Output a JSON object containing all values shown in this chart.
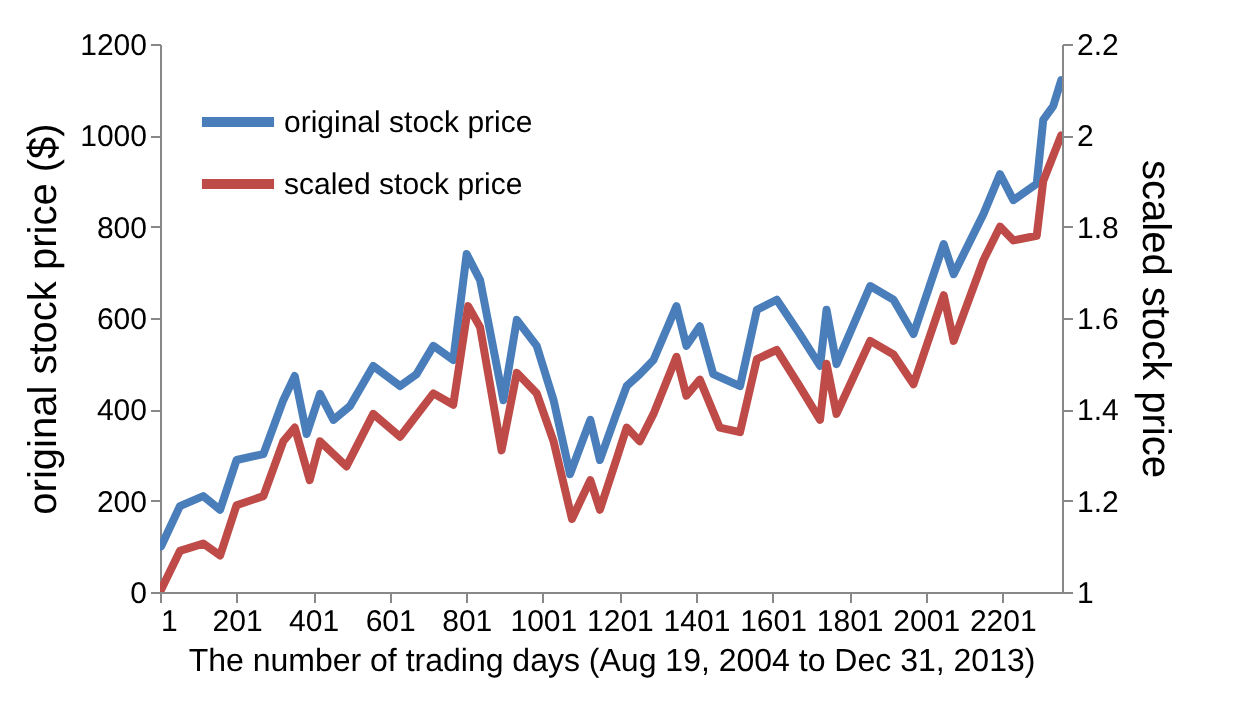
{
  "chart_data": {
    "type": "line",
    "xlabel": "The number of trading days (Aug 19, 2004 to Dec 31, 2013)",
    "ylabel": "original stock price ($)",
    "y2label": "scaled stock price",
    "xlim": [
      1,
      2357
    ],
    "xticks": [
      1,
      201,
      401,
      601,
      801,
      1001,
      1201,
      1401,
      1601,
      1801,
      2001,
      2201
    ],
    "ylim": [
      0,
      1200
    ],
    "yticks": [
      0,
      200,
      400,
      600,
      800,
      1000,
      1200
    ],
    "y2lim": [
      1,
      2.2
    ],
    "y2ticks": [
      1,
      1.2,
      1.4,
      1.6,
      1.8,
      2,
      2.2
    ],
    "legend": "top left",
    "grid": false,
    "marker": "none",
    "line_style": "solid",
    "series": [
      {
        "name": "original stock price",
        "color": "#4a7ebb",
        "x": [
          4,
          53,
          114,
          158,
          201,
          271,
          323,
          353,
          384,
          419,
          454,
          497,
          558,
          628,
          671,
          715,
          767,
          802,
          837,
          898,
          933,
          985,
          1029,
          1072,
          1125,
          1150,
          1193,
          1220,
          1254,
          1290,
          1350,
          1376,
          1411,
          1446,
          1516,
          1560,
          1612,
          1672,
          1725,
          1742,
          1768,
          1856,
          1917,
          1969,
          2048,
          2074,
          2152,
          2195,
          2230,
          2291,
          2308,
          2334,
          2355
        ],
        "values": [
          100,
          188,
          210,
          180,
          289,
          302,
          420,
          473,
          346,
          434,
          377,
          407,
          495,
          451,
          477,
          539,
          508,
          740,
          683,
          420,
          596,
          539,
          420,
          258,
          377,
          289,
          390,
          451,
          477,
          508,
          626,
          539,
          582,
          477,
          451,
          618,
          640,
          565,
          495,
          618,
          499,
          670,
          640,
          565,
          762,
          696,
          828,
          915,
          858,
          894,
          1034,
          1064,
          1121
        ]
      },
      {
        "name": "scaled stock price",
        "color": "#be4b48",
        "axis": "y2",
        "x": [
          1,
          53,
          114,
          158,
          201,
          271,
          323,
          353,
          392,
          419,
          488,
          558,
          628,
          715,
          767,
          806,
          837,
          893,
          933,
          985,
          1029,
          1077,
          1125,
          1150,
          1193,
          1220,
          1254,
          1290,
          1350,
          1376,
          1411,
          1463,
          1516,
          1560,
          1612,
          1672,
          1725,
          1742,
          1768,
          1856,
          1917,
          1969,
          2048,
          2074,
          2152,
          2195,
          2230,
          2291,
          2308,
          2355
        ],
        "values": [
          1.0,
          1.09,
          1.106,
          1.08,
          1.19,
          1.21,
          1.33,
          1.36,
          1.245,
          1.33,
          1.275,
          1.39,
          1.34,
          1.435,
          1.41,
          1.626,
          1.58,
          1.31,
          1.48,
          1.435,
          1.33,
          1.16,
          1.245,
          1.18,
          1.29,
          1.36,
          1.33,
          1.39,
          1.515,
          1.43,
          1.465,
          1.36,
          1.35,
          1.51,
          1.53,
          1.45,
          1.377,
          1.5,
          1.39,
          1.55,
          1.52,
          1.455,
          1.65,
          1.55,
          1.727,
          1.8,
          1.77,
          1.78,
          1.9,
          2.0
        ]
      }
    ]
  }
}
